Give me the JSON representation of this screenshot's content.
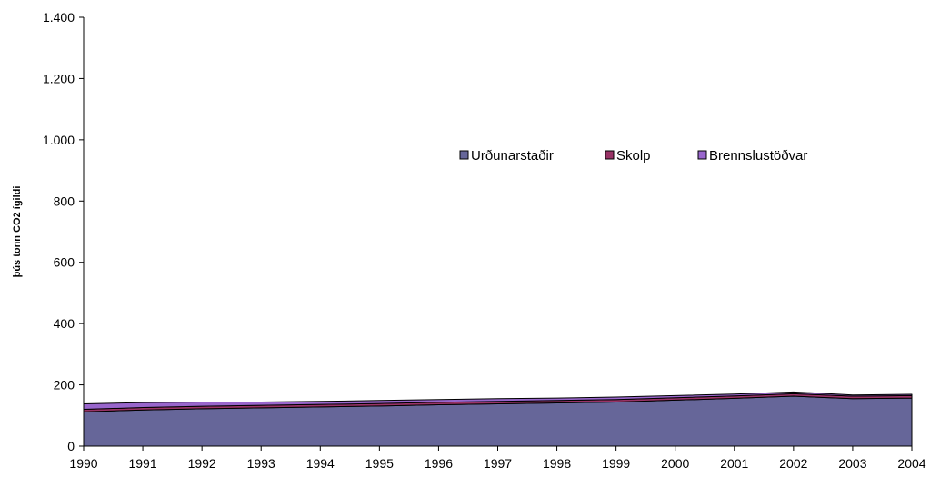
{
  "chart_data": {
    "type": "area",
    "stacked": true,
    "title": "",
    "xlabel": "",
    "ylabel": "þús tonn CO2 ígildi",
    "ylim": [
      0,
      1400
    ],
    "yticks": [
      0,
      200,
      400,
      600,
      800,
      1000,
      1200,
      1400
    ],
    "ytick_labels": [
      "0",
      "200",
      "400",
      "600",
      "800",
      "1.000",
      "1.200",
      "1.400"
    ],
    "categories": [
      "1990",
      "1991",
      "1992",
      "1993",
      "1994",
      "1995",
      "1996",
      "1997",
      "1998",
      "1999",
      "2000",
      "2001",
      "2002",
      "2003",
      "2004"
    ],
    "grid": false,
    "legend_position": "center-right",
    "series": [
      {
        "name": "Urðunarstaðir",
        "color": "#666699",
        "values": [
          112,
          118,
          122,
          125,
          128,
          131,
          135,
          138,
          141,
          144,
          150,
          156,
          163,
          155,
          157
        ]
      },
      {
        "name": "Skolp",
        "color": "#993366",
        "values": [
          8,
          8,
          8,
          8,
          8,
          8,
          8,
          8,
          8,
          8,
          8,
          8,
          8,
          8,
          8
        ]
      },
      {
        "name": "Brennslustöðvar",
        "color": "#9966CC",
        "values": [
          18,
          16,
          14,
          11,
          10,
          10,
          9,
          9,
          8,
          8,
          7,
          6,
          6,
          4,
          4
        ]
      }
    ]
  }
}
